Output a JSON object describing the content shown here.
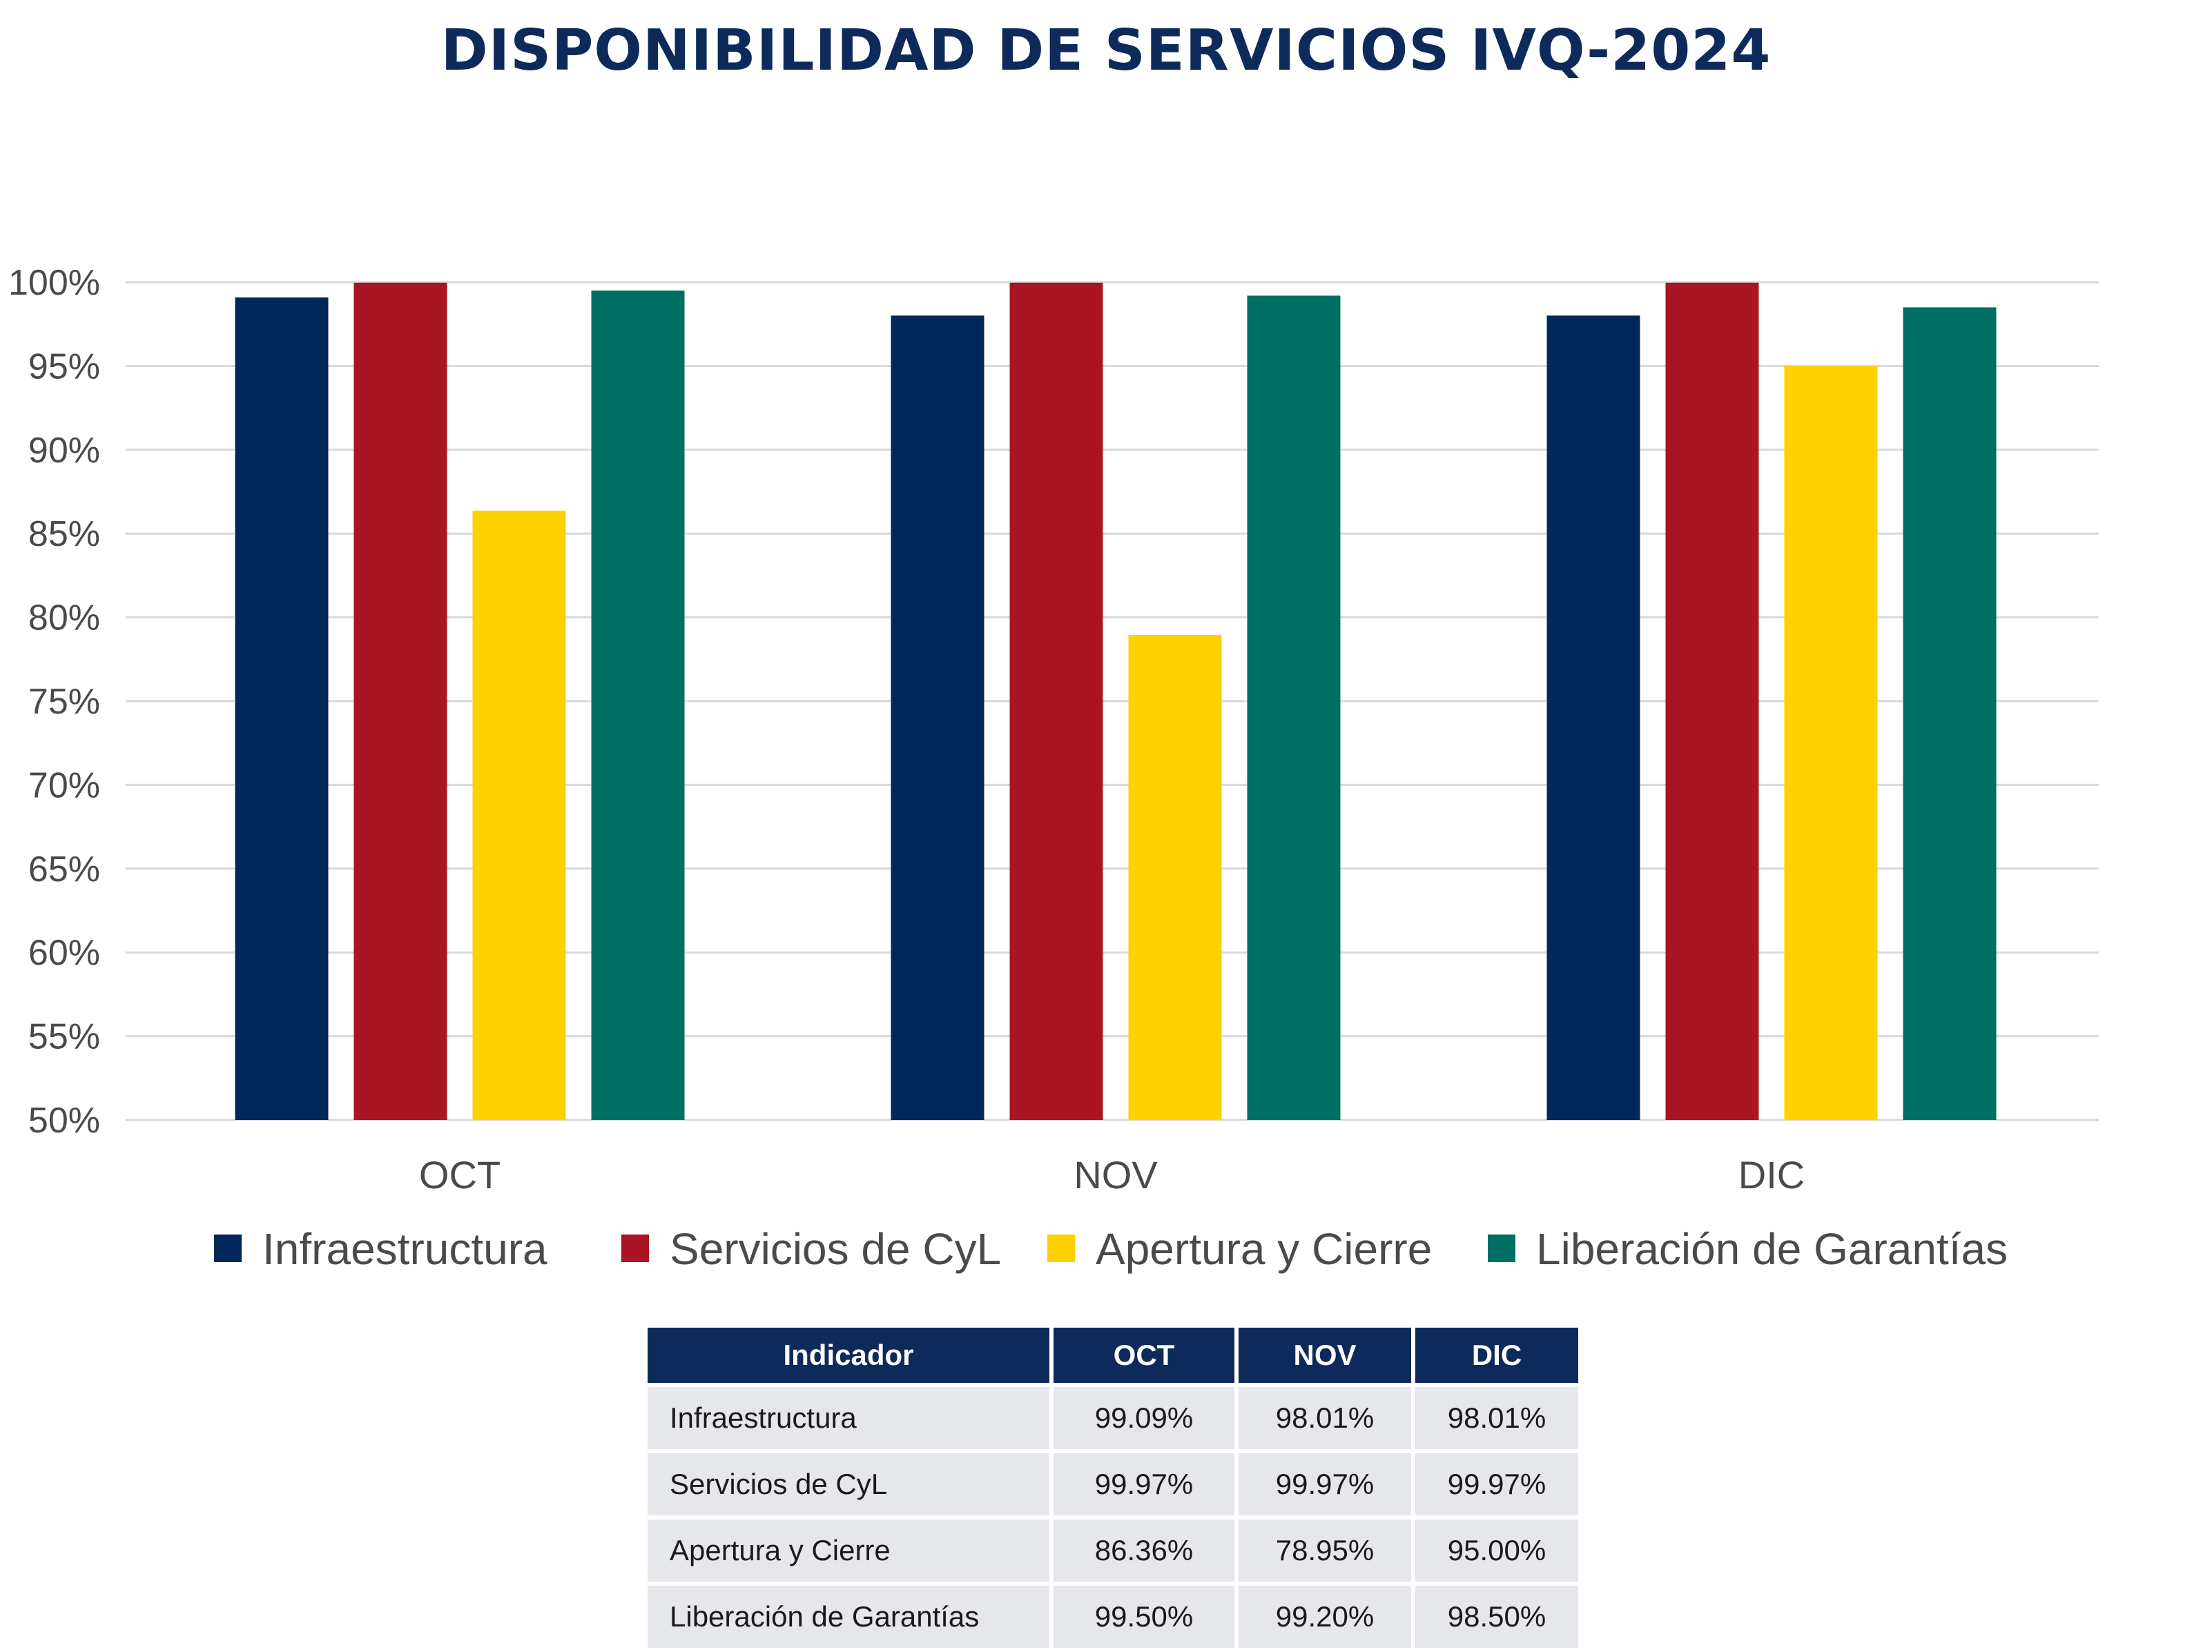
{
  "chart_data": {
    "type": "bar",
    "title": "DISPONIBILIDAD DE SERVICIOS IVQ-2024",
    "xlabel": "",
    "ylabel": "",
    "categories": [
      "OCT",
      "NOV",
      "DIC"
    ],
    "ylim": [
      50,
      100
    ],
    "y_ticks": [
      "50%",
      "55%",
      "60%",
      "65%",
      "70%",
      "75%",
      "80%",
      "85%",
      "90%",
      "95%",
      "100%"
    ],
    "y_tick_values": [
      50,
      55,
      60,
      65,
      70,
      75,
      80,
      85,
      90,
      95,
      100
    ],
    "grid": true,
    "legend_position": "bottom",
    "series": [
      {
        "name": "Infraestructura",
        "color": "#022859",
        "values": [
          99.09,
          98.01,
          98.01
        ]
      },
      {
        "name": "Servicios de CyL",
        "color": "#a91522",
        "values": [
          99.97,
          99.97,
          99.97
        ]
      },
      {
        "name": "Apertura y Cierre",
        "color": "#fdd100",
        "values": [
          86.36,
          78.95,
          95.0
        ]
      },
      {
        "name": "Liberación de Garantías",
        "color": "#006f63",
        "values": [
          99.5,
          99.2,
          98.5
        ]
      }
    ]
  },
  "table": {
    "headers": [
      "Indicador",
      "OCT",
      "NOV",
      "DIC"
    ],
    "rows": [
      [
        "Infraestructura",
        "99.09%",
        "98.01%",
        "98.01%"
      ],
      [
        "Servicios de CyL",
        "99.97%",
        "99.97%",
        "99.97%"
      ],
      [
        "Apertura y Cierre",
        "86.36%",
        "78.95%",
        "95.00%"
      ],
      [
        "Liberación de Garantías",
        "99.50%",
        "99.20%",
        "98.50%"
      ]
    ]
  }
}
